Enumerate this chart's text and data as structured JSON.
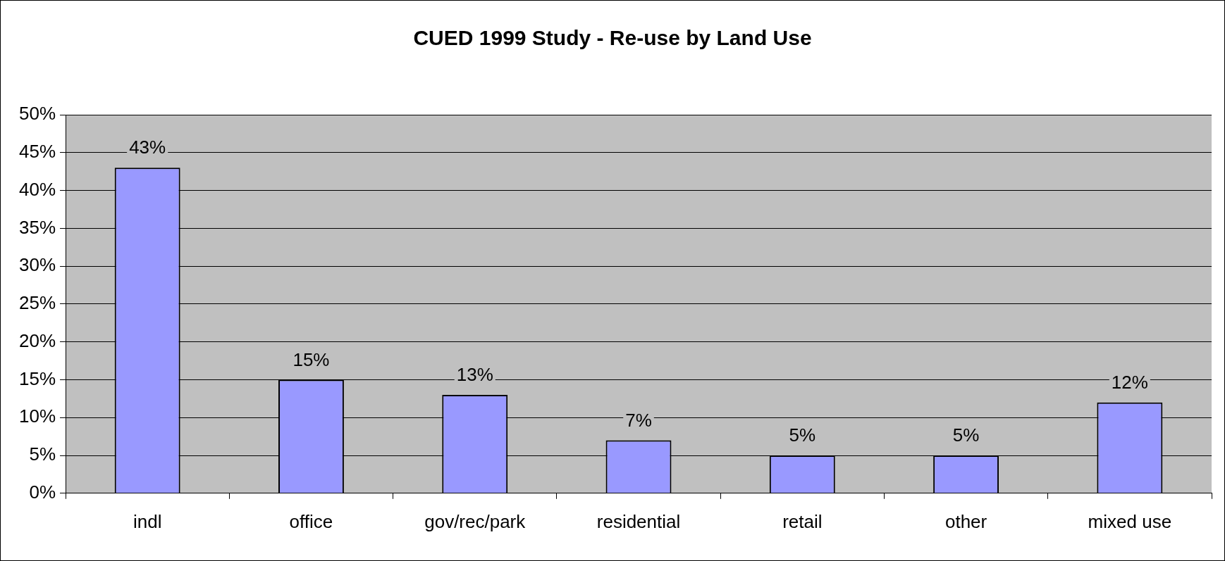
{
  "chart_data": {
    "type": "bar",
    "title": "CUED 1999 Study - Re-use by Land Use",
    "categories": [
      "indl",
      "office",
      "gov/rec/park",
      "residential",
      "retail",
      "other",
      "mixed use"
    ],
    "values": [
      43,
      15,
      13,
      7,
      5,
      5,
      12
    ],
    "value_labels": [
      "43%",
      "15%",
      "13%",
      "7%",
      "5%",
      "5%",
      "12%"
    ],
    "color": "#9999ff",
    "ylim": [
      0,
      50
    ],
    "yticks": [
      {
        "value": 0,
        "label": "0%"
      },
      {
        "value": 5,
        "label": "5%"
      },
      {
        "value": 10,
        "label": "10%"
      },
      {
        "value": 15,
        "label": "15%"
      },
      {
        "value": 20,
        "label": "20%"
      },
      {
        "value": 25,
        "label": "25%"
      },
      {
        "value": 30,
        "label": "30%"
      },
      {
        "value": 35,
        "label": "35%"
      },
      {
        "value": 40,
        "label": "40%"
      },
      {
        "value": 45,
        "label": "45%"
      },
      {
        "value": 50,
        "label": "50%"
      }
    ],
    "grid": "y",
    "legend": false
  }
}
